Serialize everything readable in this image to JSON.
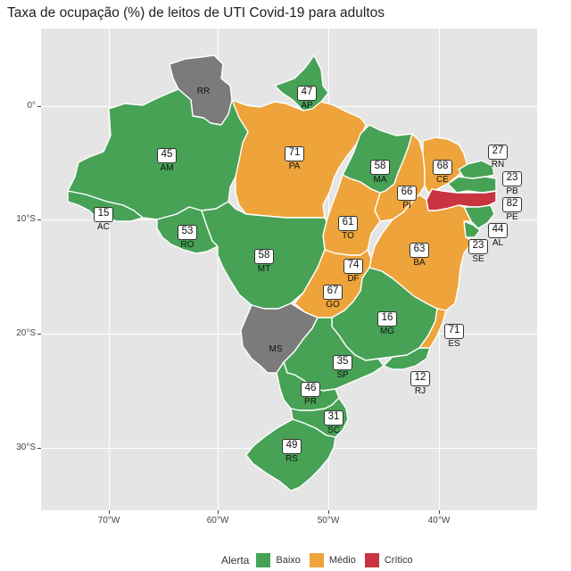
{
  "title": "Taxa de ocupação (%) de leitos de UTI Covid-19 para adultos",
  "axes": {
    "y_ticks": [
      "0°",
      "10°S",
      "20°S",
      "30°S"
    ],
    "x_ticks": [
      "70°W",
      "60°W",
      "50°W",
      "40°W"
    ]
  },
  "legend": {
    "title": "Alerta",
    "items": [
      {
        "label": "Baixo",
        "color": "#47a256"
      },
      {
        "label": "Médio",
        "color": "#eea43a"
      },
      {
        "label": "Crítico",
        "color": "#c8343f"
      }
    ]
  },
  "colors": {
    "baixo": "#47a256",
    "medio": "#eea43a",
    "critico": "#c8343f",
    "no_data": "#7b7b7b"
  },
  "states": [
    {
      "abbr": "RR",
      "value": ""
    },
    {
      "abbr": "AP",
      "value": "47"
    },
    {
      "abbr": "AM",
      "value": "45"
    },
    {
      "abbr": "PA",
      "value": "71"
    },
    {
      "abbr": "MA",
      "value": "58"
    },
    {
      "abbr": "CE",
      "value": "68"
    },
    {
      "abbr": "RN",
      "value": "27"
    },
    {
      "abbr": "PB",
      "value": "23"
    },
    {
      "abbr": "PE",
      "value": "82"
    },
    {
      "abbr": "AL",
      "value": "44"
    },
    {
      "abbr": "SE",
      "value": "23"
    },
    {
      "abbr": "PI",
      "value": "66"
    },
    {
      "abbr": "AC",
      "value": "15"
    },
    {
      "abbr": "RO",
      "value": "53"
    },
    {
      "abbr": "TO",
      "value": "61"
    },
    {
      "abbr": "BA",
      "value": "63"
    },
    {
      "abbr": "MT",
      "value": "58"
    },
    {
      "abbr": "DF",
      "value": "74"
    },
    {
      "abbr": "GO",
      "value": "67"
    },
    {
      "abbr": "MG",
      "value": "16"
    },
    {
      "abbr": "ES",
      "value": "71"
    },
    {
      "abbr": "MS",
      "value": ""
    },
    {
      "abbr": "SP",
      "value": "35"
    },
    {
      "abbr": "RJ",
      "value": "12"
    },
    {
      "abbr": "PR",
      "value": "46"
    },
    {
      "abbr": "SC",
      "value": "31"
    },
    {
      "abbr": "RS",
      "value": "49"
    }
  ]
}
